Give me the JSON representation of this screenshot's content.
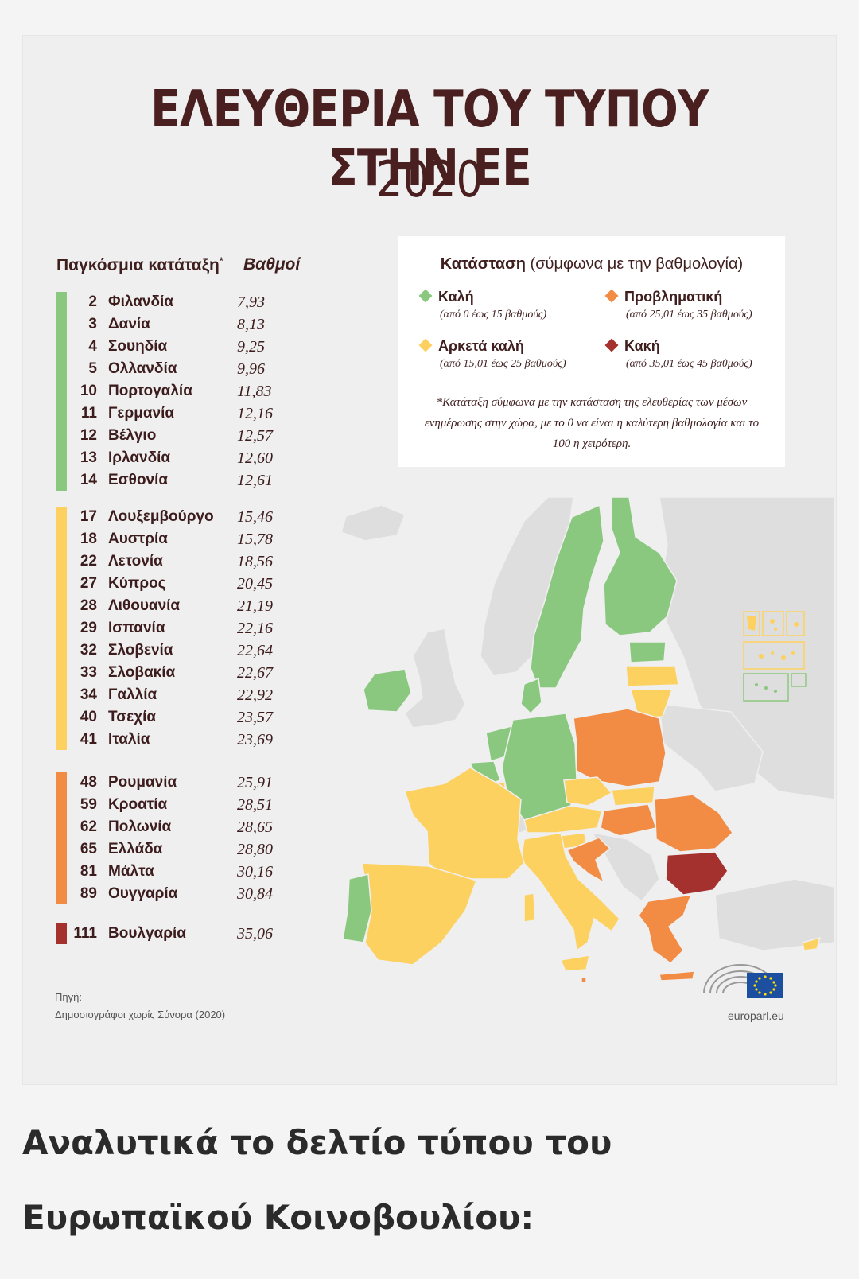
{
  "title": "ΕΛΕΥΘΕΡΙΑ ΤΟΥ ΤΥΠΟΥ ΣΤΗΝ ΕΕ",
  "year": "2020",
  "table": {
    "rank_header": "Παγκόσμια κατάταξη",
    "rank_header_mark": "*",
    "score_header": "Βαθμοί",
    "groups": [
      {
        "color": "#8bc87f",
        "rows": [
          {
            "rank": "2",
            "country": "Φιλανδία",
            "score": "7,93"
          },
          {
            "rank": "3",
            "country": "Δανία",
            "score": "8,13"
          },
          {
            "rank": "4",
            "country": "Σουηδία",
            "score": "9,25"
          },
          {
            "rank": "5",
            "country": "Ολλανδία",
            "score": "9,96"
          },
          {
            "rank": "10",
            "country": "Πορτογαλία",
            "score": "11,83"
          },
          {
            "rank": "11",
            "country": "Γερμανία",
            "score": "12,16"
          },
          {
            "rank": "12",
            "country": "Βέλγιο",
            "score": "12,57"
          },
          {
            "rank": "13",
            "country": "Ιρλανδία",
            "score": "12,60"
          },
          {
            "rank": "14",
            "country": "Εσθονία",
            "score": "12,61"
          }
        ]
      },
      {
        "color": "#fdd160",
        "rows": [
          {
            "rank": "17",
            "country": "Λουξεμβούργο",
            "score": "15,46"
          },
          {
            "rank": "18",
            "country": "Αυστρία",
            "score": "15,78"
          },
          {
            "rank": "22",
            "country": "Λετονία",
            "score": "18,56"
          },
          {
            "rank": "27",
            "country": "Κύπρος",
            "score": "20,45"
          },
          {
            "rank": "28",
            "country": "Λιθουανία",
            "score": "21,19"
          },
          {
            "rank": "29",
            "country": "Ισπανία",
            "score": "22,16"
          },
          {
            "rank": "32",
            "country": "Σλοβενία",
            "score": "22,64"
          },
          {
            "rank": "33",
            "country": "Σλοβακία",
            "score": "22,67"
          },
          {
            "rank": "34",
            "country": "Γαλλία",
            "score": "22,92"
          },
          {
            "rank": "40",
            "country": "Τσεχία",
            "score": "23,57"
          },
          {
            "rank": "41",
            "country": "Ιταλία",
            "score": "23,69"
          }
        ]
      },
      {
        "color": "#f28c45",
        "rows": [
          {
            "rank": "48",
            "country": "Ρουμανία",
            "score": "25,91"
          },
          {
            "rank": "59",
            "country": "Κροατία",
            "score": "28,51"
          },
          {
            "rank": "62",
            "country": "Πολωνία",
            "score": "28,65"
          },
          {
            "rank": "65",
            "country": "Ελλάδα",
            "score": "28,80"
          },
          {
            "rank": "81",
            "country": "Μάλτα",
            "score": "30,16"
          },
          {
            "rank": "89",
            "country": "Ουγγαρία",
            "score": "30,84"
          }
        ]
      },
      {
        "color": "#a5312f",
        "rows": [
          {
            "rank": "111",
            "country": "Βουλγαρία",
            "score": "35,06"
          }
        ]
      }
    ]
  },
  "legend": {
    "title_bold": "Κατάσταση",
    "title_rest": "(σύμφωνα με την βαθμολογία)",
    "items": [
      {
        "label": "Καλή",
        "range": "(από 0 έως 15 βαθμούς)",
        "color": "#8bc87f"
      },
      {
        "label": "Προβληματική",
        "range": "(από 25,01 έως 35 βαθμούς)",
        "color": "#f28c45"
      },
      {
        "label": "Αρκετά καλή",
        "range": "(από 15,01 έως 25 βαθμούς)",
        "color": "#fdd160"
      },
      {
        "label": "Κακή",
        "range": "(από 35,01 έως 45 βαθμούς)",
        "color": "#a5312f"
      }
    ],
    "note_line1": "*Κατάταξη σύμφωνα με την κατάσταση της ελευθερίας των μέσων",
    "note_line2": "ενημέρωσης στην χώρα, με το 0 να είναι η καλύτερη βαθμολογία και το",
    "note_line3": "100 η χειρότερη."
  },
  "source": {
    "label": "Πηγή:",
    "text": "Δημοσιογράφοι χωρίς Σύνορα (2020)"
  },
  "europarl": "europarl.eu",
  "footer": {
    "line1": "Αναλυτικά το δελτίο τύπου του",
    "line2": "Ευρωπαϊκού Κοινοβουλίου:"
  }
}
